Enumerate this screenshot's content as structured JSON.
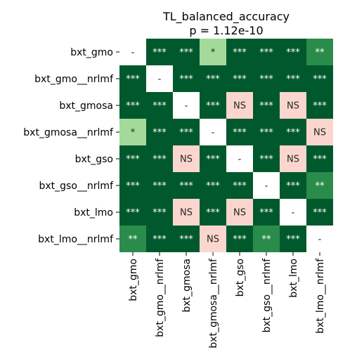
{
  "chart_data": {
    "type": "heatmap",
    "title": "TL_balanced_accuracy",
    "subtitle": "p = 1.12e-10",
    "row_labels": [
      "bxt_gmo",
      "bxt_gmo__nrlmf",
      "bxt_gmosa",
      "bxt_gmosa__nrlmf",
      "bxt_gso",
      "bxt_gso__nrlmf",
      "bxt_lmo",
      "bxt_lmo__nrlmf"
    ],
    "col_labels": [
      "bxt_gmo",
      "bxt_gmo__nrlmf",
      "bxt_gmosa",
      "bxt_gmosa__nrlmf",
      "bxt_gso",
      "bxt_gso__nrlmf",
      "bxt_lmo",
      "bxt_lmo__nrlmf"
    ],
    "cells": [
      [
        "-",
        "***",
        "***",
        "*",
        "***",
        "***",
        "***",
        "**"
      ],
      [
        "***",
        "-",
        "***",
        "***",
        "***",
        "***",
        "***",
        "***"
      ],
      [
        "***",
        "***",
        "-",
        "***",
        "NS",
        "***",
        "NS",
        "***"
      ],
      [
        "*",
        "***",
        "***",
        "-",
        "***",
        "***",
        "***",
        "NS"
      ],
      [
        "***",
        "***",
        "NS",
        "***",
        "-",
        "***",
        "NS",
        "***"
      ],
      [
        "***",
        "***",
        "***",
        "***",
        "***",
        "-",
        "***",
        "**"
      ],
      [
        "***",
        "***",
        "NS",
        "***",
        "NS",
        "***",
        "-",
        "***"
      ],
      [
        "**",
        "***",
        "***",
        "NS",
        "***",
        "**",
        "***",
        "-"
      ]
    ],
    "colors": {
      "***": "#00592c",
      "**": "#2a8c4a",
      "*": "#a3da9a",
      "NS": "#fbd6ce",
      "-": "#ffffff"
    },
    "text_colors": {
      "***": "#ffffff",
      "**": "#ffffff",
      "*": "#262626",
      "NS": "#262626",
      "-": "#262626"
    },
    "grid": false
  }
}
